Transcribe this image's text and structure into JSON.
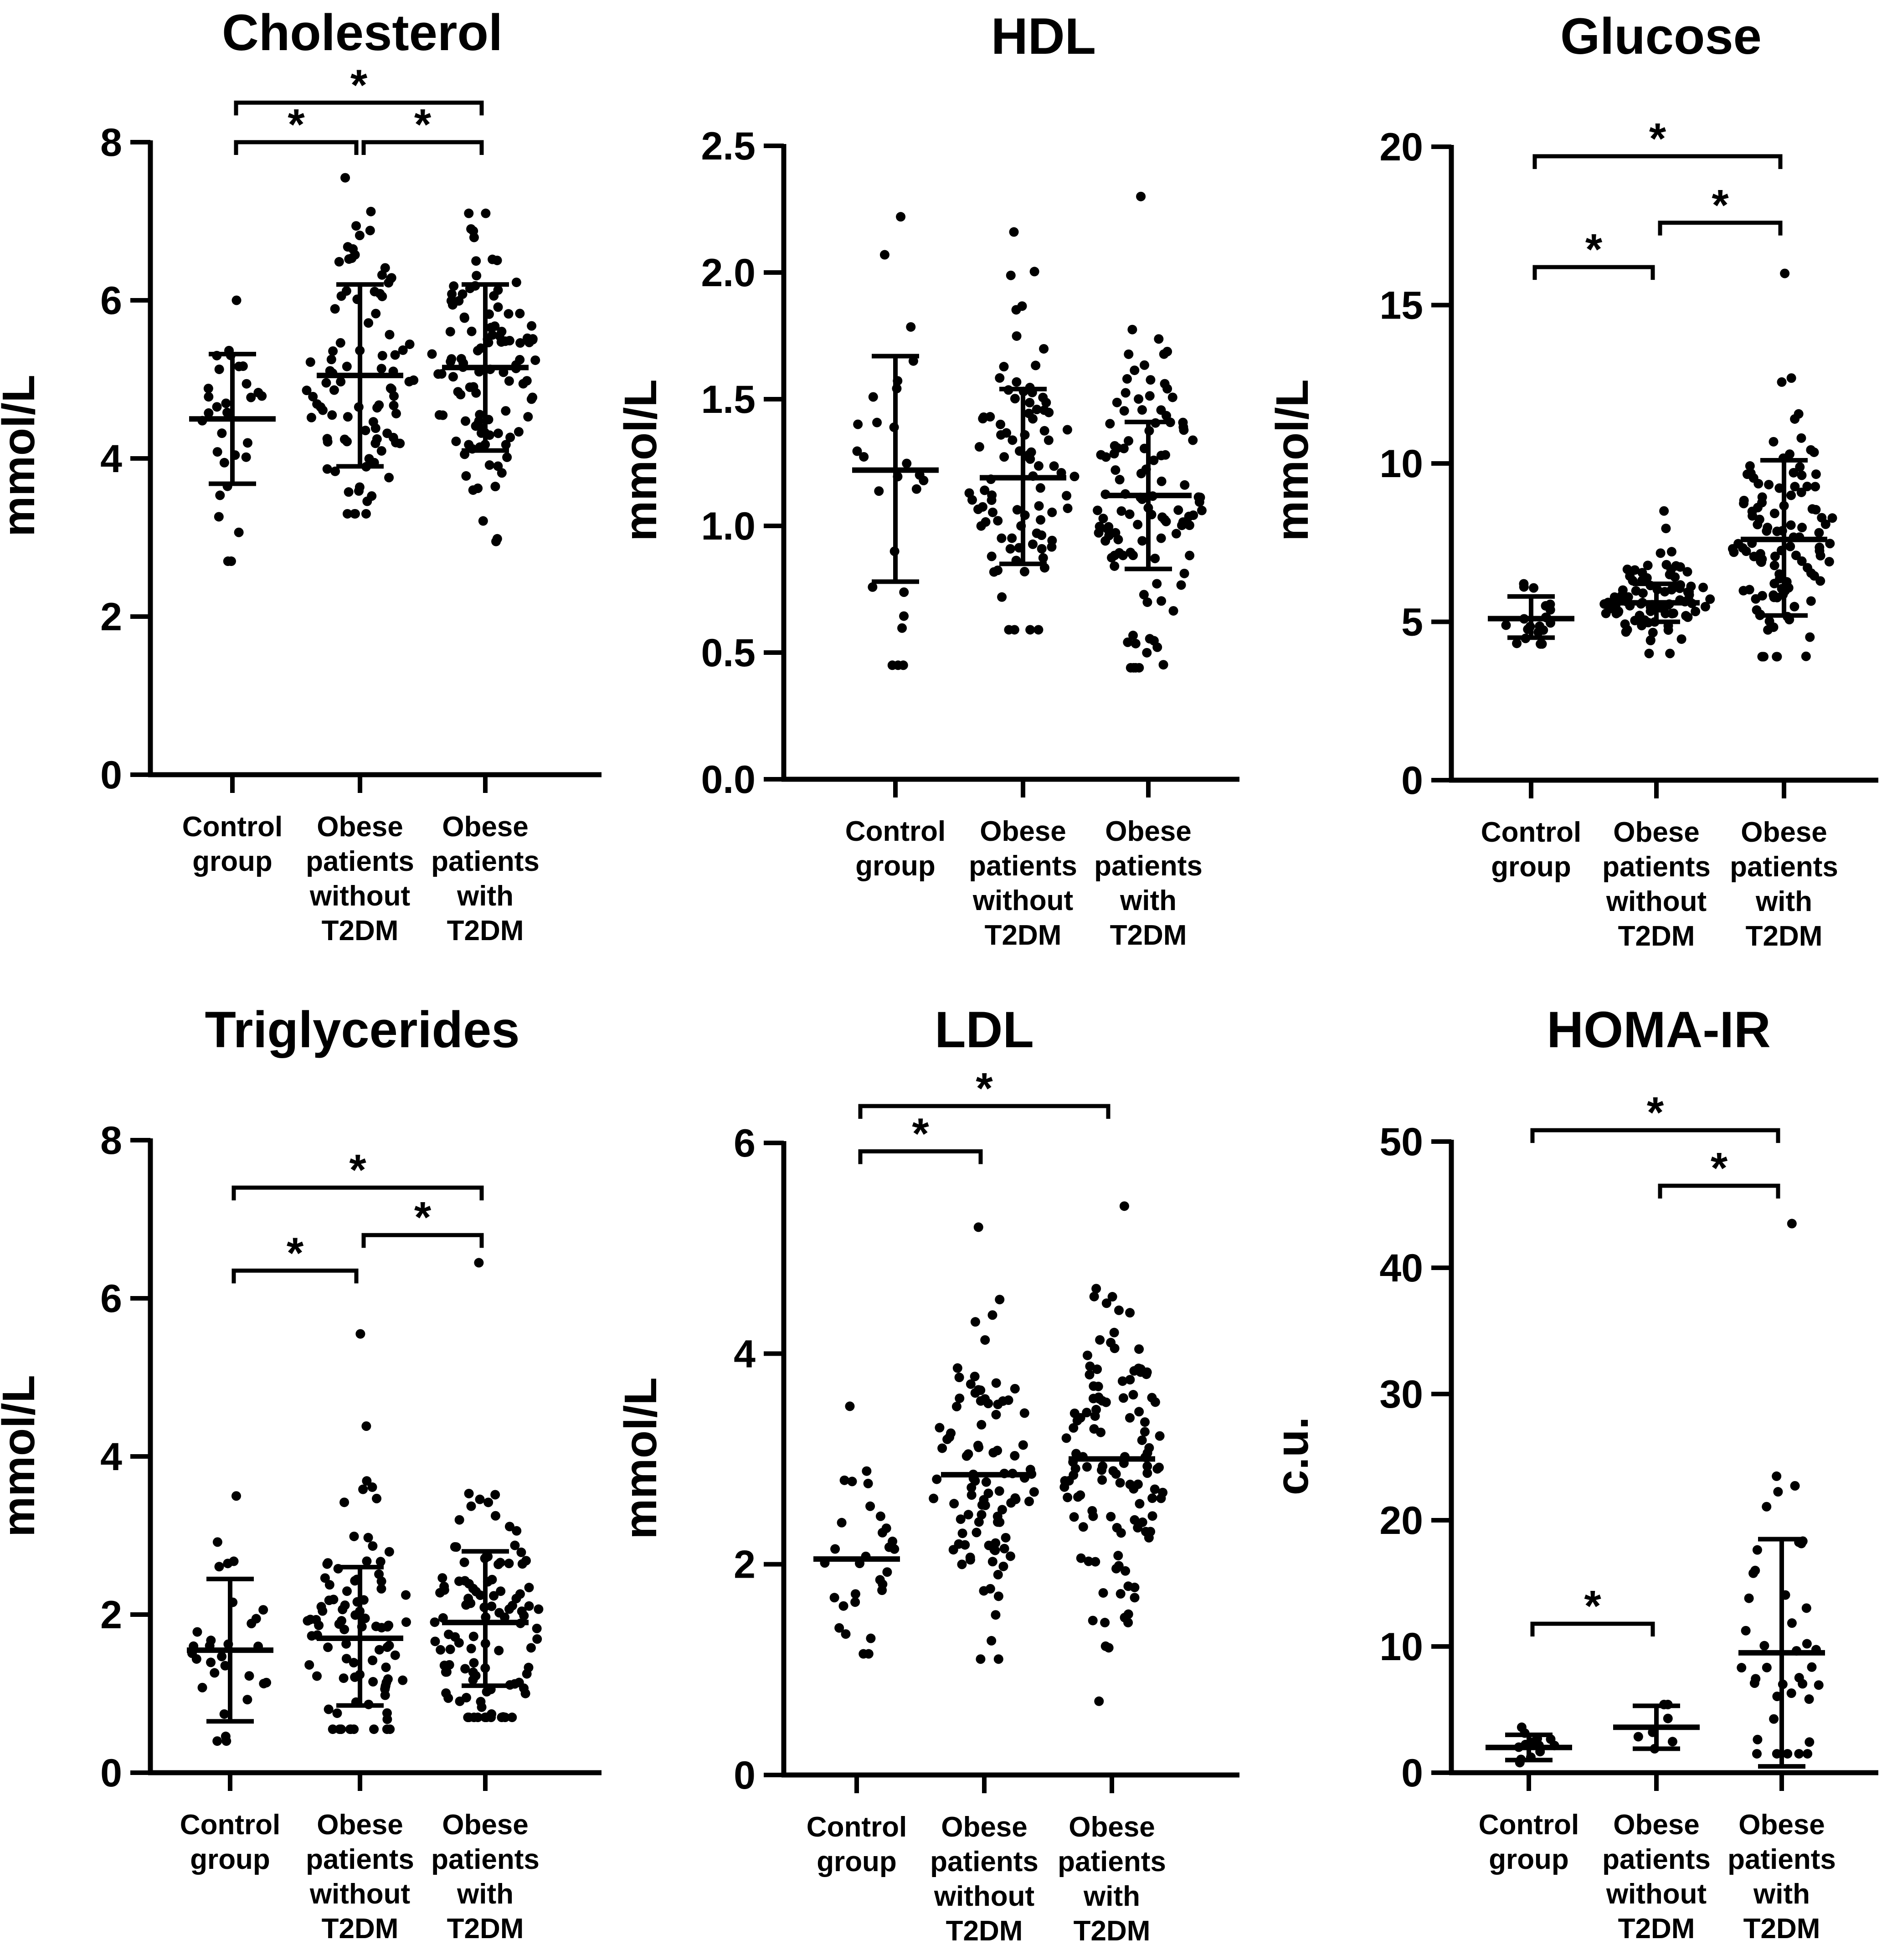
{
  "figure": {
    "columns": [
      "Control group",
      "Obese patients without T2DM",
      "Obese patients with T2DM"
    ]
  },
  "chart_data": [
    {
      "type": "scatter",
      "title": "Cholesterol",
      "ylabel": "mmol/L",
      "ylim": [
        0,
        8
      ],
      "yticks": [
        0,
        2,
        4,
        6,
        8
      ],
      "ytick_labels": [
        "0",
        "2",
        "4",
        "6",
        "8"
      ],
      "categories": [
        [
          "Control",
          "group"
        ],
        [
          "Obese",
          "patients",
          "without",
          "T2DM"
        ],
        [
          "Obese",
          "patients",
          "with",
          "T2DM"
        ]
      ],
      "groups": [
        {
          "name": "Control group",
          "mean": 4.5,
          "sd_low": 3.68,
          "sd_high": 5.32,
          "n": 30,
          "min": 2.7,
          "max": 6.0
        },
        {
          "name": "Obese patients without T2DM",
          "mean": 5.05,
          "sd_low": 3.9,
          "sd_high": 6.2,
          "n": 90,
          "min": 3.3,
          "max": 7.55
        },
        {
          "name": "Obese patients with T2DM",
          "mean": 5.15,
          "sd_low": 4.1,
          "sd_high": 6.2,
          "n": 110,
          "min": 2.95,
          "max": 7.1
        }
      ],
      "significance": [
        {
          "from": 0,
          "to": 1,
          "value": 8.0,
          "label": "*"
        },
        {
          "from": 1,
          "to": 2,
          "value": 8.0,
          "label": "*"
        },
        {
          "from": 0,
          "to": 2,
          "value": 8.5,
          "label": "*"
        }
      ]
    },
    {
      "type": "scatter",
      "title": "HDL",
      "ylabel": "mmol/L",
      "ylim": [
        0,
        2.5
      ],
      "yticks": [
        0,
        0.5,
        1.0,
        1.5,
        2.0,
        2.5
      ],
      "ytick_labels": [
        "0.0",
        "0.5",
        "1.0",
        "1.5",
        "2.0",
        "2.5"
      ],
      "categories": [
        [
          "Control",
          "group"
        ],
        [
          "Obese",
          "patients",
          "without",
          "T2DM"
        ],
        [
          "Obese",
          "patients",
          "with",
          "T2DM"
        ]
      ],
      "groups": [
        {
          "name": "Control group",
          "mean": 1.22,
          "sd_low": 0.78,
          "sd_high": 1.67,
          "n": 26,
          "min": 0.45,
          "max": 2.22
        },
        {
          "name": "Obese patients without T2DM",
          "mean": 1.19,
          "sd_low": 0.85,
          "sd_high": 1.54,
          "n": 90,
          "min": 0.59,
          "max": 2.16
        },
        {
          "name": "Obese patients with T2DM",
          "mean": 1.12,
          "sd_low": 0.83,
          "sd_high": 1.41,
          "n": 110,
          "min": 0.44,
          "max": 2.3
        }
      ],
      "significance": []
    },
    {
      "type": "scatter",
      "title": "Glucose",
      "ylabel": "mmol/L",
      "ylim": [
        0,
        20
      ],
      "yticks": [
        0,
        5,
        10,
        15,
        20
      ],
      "ytick_labels": [
        "0",
        "5",
        "10",
        "15",
        "20"
      ],
      "categories": [
        [
          "Control",
          "group"
        ],
        [
          "Obese",
          "patients",
          "without",
          "T2DM"
        ],
        [
          "Obese",
          "patients",
          "with",
          "T2DM"
        ]
      ],
      "groups": [
        {
          "name": "Control group",
          "mean": 5.1,
          "sd_low": 4.5,
          "sd_high": 5.8,
          "n": 20,
          "min": 4.3,
          "max": 6.2
        },
        {
          "name": "Obese patients without T2DM",
          "mean": 5.6,
          "sd_low": 5.0,
          "sd_high": 6.2,
          "n": 90,
          "min": 4.0,
          "max": 8.5
        },
        {
          "name": "Obese patients with T2DM",
          "mean": 7.6,
          "sd_low": 5.2,
          "sd_high": 10.1,
          "n": 110,
          "min": 3.9,
          "max": 16.0
        }
      ],
      "significance": [
        {
          "from": 0,
          "to": 1,
          "value": 16.2,
          "label": "*"
        },
        {
          "from": 1,
          "to": 2,
          "value": 17.6,
          "label": "*"
        },
        {
          "from": 0,
          "to": 2,
          "value": 19.7,
          "label": "*"
        }
      ]
    },
    {
      "type": "scatter",
      "title": "Triglycerides",
      "ylabel": "mmol/L",
      "ylim": [
        0,
        8
      ],
      "yticks": [
        0,
        2,
        4,
        6,
        8
      ],
      "ytick_labels": [
        "0",
        "2",
        "4",
        "6",
        "8"
      ],
      "categories": [
        [
          "Control",
          "group"
        ],
        [
          "Obese",
          "patients",
          "without",
          "T2DM"
        ],
        [
          "Obese",
          "patients",
          "with",
          "T2DM"
        ]
      ],
      "groups": [
        {
          "name": "Control group",
          "mean": 1.55,
          "sd_low": 0.65,
          "sd_high": 2.45,
          "n": 30,
          "min": 0.4,
          "max": 3.5
        },
        {
          "name": "Obese patients without T2DM",
          "mean": 1.7,
          "sd_low": 0.85,
          "sd_high": 2.6,
          "n": 90,
          "min": 0.55,
          "max": 5.55
        },
        {
          "name": "Obese patients with T2DM",
          "mean": 1.9,
          "sd_low": 1.1,
          "sd_high": 2.8,
          "n": 110,
          "min": 0.7,
          "max": 6.45
        }
      ],
      "significance": [
        {
          "from": 0,
          "to": 1,
          "value": 6.35,
          "label": "*"
        },
        {
          "from": 1,
          "to": 2,
          "value": 6.8,
          "label": "*"
        },
        {
          "from": 0,
          "to": 2,
          "value": 7.4,
          "label": "*"
        }
      ]
    },
    {
      "type": "scatter",
      "title": "LDL",
      "ylabel": "mmol/L",
      "ylim": [
        0,
        6
      ],
      "yticks": [
        0,
        2,
        4,
        6
      ],
      "ytick_labels": [
        "0",
        "2",
        "4",
        "6"
      ],
      "categories": [
        [
          "Control",
          "group"
        ],
        [
          "Obese",
          "patients",
          "without",
          "T2DM"
        ],
        [
          "Obese",
          "patients",
          "with",
          "T2DM"
        ]
      ],
      "groups": [
        {
          "name": "Control group",
          "mean": 2.05,
          "sd_low": 2.05,
          "sd_high": 2.05,
          "n": 30,
          "min": 1.15,
          "max": 3.5
        },
        {
          "name": "Obese patients without T2DM",
          "mean": 2.85,
          "sd_low": 2.85,
          "sd_high": 2.85,
          "n": 95,
          "min": 1.1,
          "max": 5.2
        },
        {
          "name": "Obese patients with T2DM",
          "mean": 3.0,
          "sd_low": 3.0,
          "sd_high": 3.0,
          "n": 120,
          "min": 0.7,
          "max": 5.4
        }
      ],
      "significance": [
        {
          "from": 0,
          "to": 1,
          "value": 5.92,
          "label": "*"
        },
        {
          "from": 0,
          "to": 2,
          "value": 6.35,
          "label": "*"
        }
      ]
    },
    {
      "type": "scatter",
      "title": "HOMA-IR",
      "ylabel": "c.u.",
      "ylim": [
        0,
        50
      ],
      "yticks": [
        0,
        10,
        20,
        30,
        40,
        50
      ],
      "ytick_labels": [
        "0",
        "10",
        "20",
        "30",
        "40",
        "50"
      ],
      "categories": [
        [
          "Control",
          "group"
        ],
        [
          "Obese",
          "patients",
          "without",
          "T2DM"
        ],
        [
          "Obese",
          "patients",
          "with",
          "T2DM"
        ]
      ],
      "groups": [
        {
          "name": "Control group",
          "mean": 2.0,
          "sd_low": 1.0,
          "sd_high": 3.0,
          "n": 14,
          "min": 0.8,
          "max": 3.6
        },
        {
          "name": "Obese patients without T2DM",
          "mean": 3.6,
          "sd_low": 1.9,
          "sd_high": 5.3,
          "n": 7,
          "min": 1.9,
          "max": 5.4
        },
        {
          "name": "Obese patients with T2DM",
          "mean": 9.5,
          "sd_low": 0.5,
          "sd_high": 18.5,
          "n": 40,
          "min": 1.5,
          "max": 43.5
        }
      ],
      "significance": [
        {
          "from": 0,
          "to": 1,
          "value": 11.8,
          "label": "*"
        },
        {
          "from": 1,
          "to": 2,
          "value": 46.5,
          "label": "*"
        },
        {
          "from": 0,
          "to": 2,
          "value": 50.9,
          "label": "*"
        }
      ]
    }
  ]
}
